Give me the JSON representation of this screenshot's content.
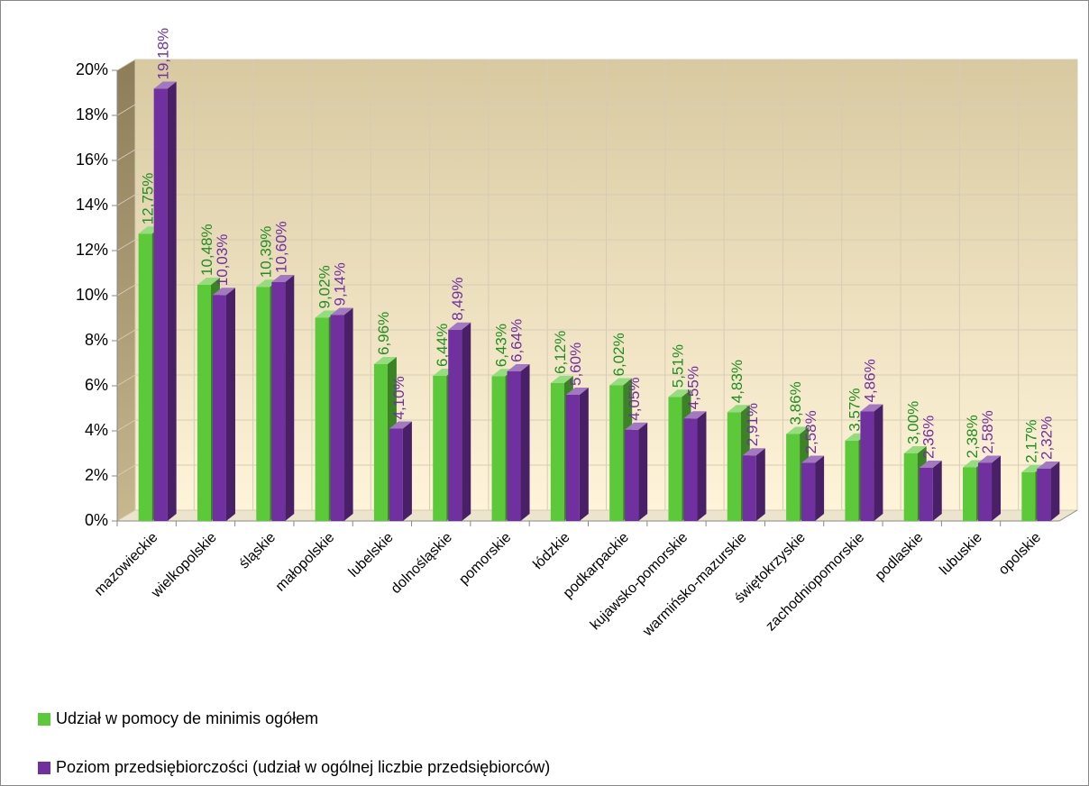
{
  "chart_data": {
    "type": "bar",
    "categories": [
      "mazowieckie",
      "wielkopolskie",
      "śląskie",
      "małopolskie",
      "lubelskie",
      "dolnośląskie",
      "pomorskie",
      "łódzkie",
      "podkarpackie",
      "kujawsko-pomorskie",
      "warmińsko-mazurskie",
      "świętokrzyskie",
      "zachodniopomorskie",
      "podlaskie",
      "lubuskie",
      "opolskie"
    ],
    "series": [
      {
        "name": "Udział w pomocy de minimis ogółem",
        "color": "#5cc93a",
        "values": [
          12.75,
          10.48,
          10.39,
          9.02,
          6.96,
          6.44,
          6.43,
          6.12,
          6.02,
          5.51,
          4.83,
          3.86,
          3.57,
          3.0,
          2.38,
          2.17
        ],
        "value_labels": [
          "12,75%",
          "10,48%",
          "10,39%",
          "9,02%",
          "6,96%",
          "6,44%",
          "6,43%",
          "6,12%",
          "6,02%",
          "5,51%",
          "4,83%",
          "3,86%",
          "3,57%",
          "3,00%",
          "2,38%",
          "2,17%"
        ]
      },
      {
        "name": "Poziom przedsiębiorczości (udział w ogólnej liczbie przedsiębiorców)",
        "color": "#7030a0",
        "values": [
          19.18,
          10.03,
          10.6,
          9.14,
          4.1,
          8.49,
          6.64,
          5.6,
          4.05,
          4.55,
          2.91,
          2.58,
          4.86,
          2.36,
          2.58,
          2.32
        ],
        "value_labels": [
          "19,18%",
          "10,03%",
          "10,60%",
          "9,14%",
          "4,10%",
          "8,49%",
          "6,64%",
          "5,60%",
          "4,05%",
          "4,55%",
          "2,91%",
          "2,58%",
          "4,86%",
          "2,36%",
          "2,58%",
          "2,32%"
        ]
      }
    ],
    "ylim": [
      0,
      20
    ],
    "yticks": [
      {
        "value": 0,
        "label": "0%"
      },
      {
        "value": 2,
        "label": "2%"
      },
      {
        "value": 4,
        "label": "4%"
      },
      {
        "value": 6,
        "label": "6%"
      },
      {
        "value": 8,
        "label": "8%"
      },
      {
        "value": 10,
        "label": "10%"
      },
      {
        "value": 12,
        "label": "12%"
      },
      {
        "value": 14,
        "label": "14%"
      },
      {
        "value": 16,
        "label": "16%"
      },
      {
        "value": 18,
        "label": "18%"
      },
      {
        "value": 20,
        "label": "20%"
      }
    ],
    "grid": true,
    "legend": "bottom-left"
  }
}
